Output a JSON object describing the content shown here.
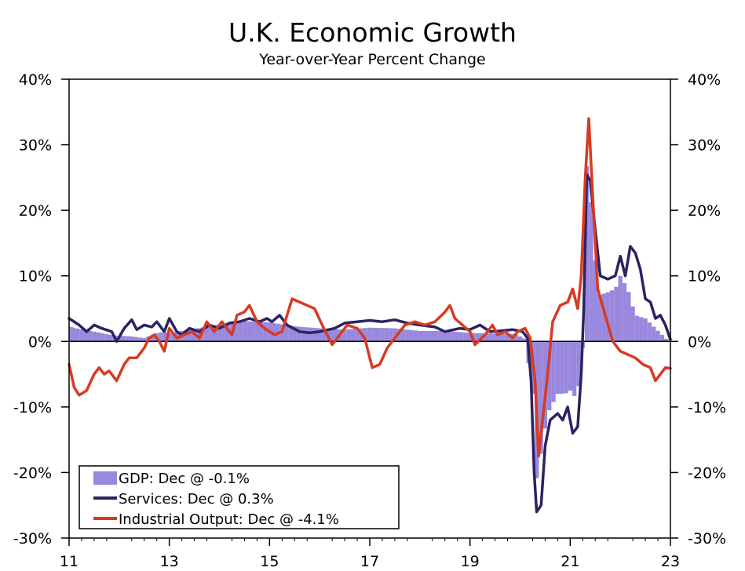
{
  "chart_data": {
    "type": "bar+line",
    "title": "U.K. Economic Growth",
    "subtitle": "Year-over-Year Percent Change",
    "x_axis": {
      "ticks": [
        "11",
        "13",
        "15",
        "17",
        "19",
        "21",
        "23"
      ],
      "tick_years": [
        2011,
        2013,
        2015,
        2017,
        2019,
        2021,
        2023
      ]
    },
    "y_axis": {
      "ticks": [
        "40%",
        "30%",
        "20%",
        "10%",
        "0%",
        "-10%",
        "-20%",
        "-30%"
      ],
      "tick_values": [
        40,
        30,
        20,
        10,
        0,
        -10,
        -20,
        -30
      ],
      "ylim": [
        -30,
        40
      ],
      "mirrored_right": true
    },
    "legend": {
      "placement": "bottom-left",
      "entries": [
        {
          "label": "GDP: Dec @ -0.1%",
          "type": "bar",
          "color": "#9988dd"
        },
        {
          "label": "Services: Dec @ 0.3%",
          "type": "line",
          "color": "#2b2263"
        },
        {
          "label": "Industrial Output: Dec @ -4.1%",
          "type": "line",
          "color": "#d83a22"
        }
      ]
    },
    "series": [
      {
        "name": "GDP",
        "type": "bar",
        "color": "#9988dd",
        "points": [
          [
            2011.0,
            2.2
          ],
          [
            2011.5,
            1.5
          ],
          [
            2011.9,
            0.9
          ],
          [
            2012.2,
            0.8
          ],
          [
            2012.5,
            0.5
          ],
          [
            2012.8,
            1.4
          ],
          [
            2013.0,
            1.3
          ],
          [
            2013.5,
            1.9
          ],
          [
            2014.0,
            2.6
          ],
          [
            2014.5,
            3.1
          ],
          [
            2015.0,
            2.9
          ],
          [
            2015.5,
            2.3
          ],
          [
            2016.0,
            2.0
          ],
          [
            2016.5,
            1.8
          ],
          [
            2017.0,
            2.1
          ],
          [
            2017.5,
            2.0
          ],
          [
            2018.0,
            1.6
          ],
          [
            2018.5,
            1.6
          ],
          [
            2019.0,
            1.3
          ],
          [
            2019.5,
            1.2
          ],
          [
            2019.9,
            1.1
          ],
          [
            2020.1,
            0.4
          ],
          [
            2020.25,
            -8.0
          ],
          [
            2020.33,
            -21.0
          ],
          [
            2020.42,
            -17.0
          ],
          [
            2020.55,
            -11.0
          ],
          [
            2020.75,
            -8.0
          ],
          [
            2020.9,
            -8.0
          ],
          [
            2021.0,
            -7.5
          ],
          [
            2021.1,
            -8.5
          ],
          [
            2021.2,
            -6.0
          ],
          [
            2021.25,
            -1.0
          ],
          [
            2021.33,
            27.0
          ],
          [
            2021.42,
            21.0
          ],
          [
            2021.55,
            7.0
          ],
          [
            2021.75,
            7.5
          ],
          [
            2021.9,
            8.0
          ],
          [
            2022.0,
            10.0
          ],
          [
            2022.15,
            8.0
          ],
          [
            2022.3,
            4.0
          ],
          [
            2022.5,
            3.5
          ],
          [
            2022.7,
            2.0
          ],
          [
            2022.9,
            0.5
          ],
          [
            2023.0,
            -0.1
          ]
        ]
      },
      {
        "name": "Services",
        "type": "line",
        "color": "#2b2263",
        "points": [
          [
            2011.0,
            3.5
          ],
          [
            2011.2,
            2.5
          ],
          [
            2011.35,
            1.5
          ],
          [
            2011.5,
            2.5
          ],
          [
            2011.65,
            2.0
          ],
          [
            2011.85,
            1.5
          ],
          [
            2011.95,
            0.0
          ],
          [
            2012.1,
            2.0
          ],
          [
            2012.25,
            3.3
          ],
          [
            2012.35,
            1.8
          ],
          [
            2012.5,
            2.5
          ],
          [
            2012.65,
            2.2
          ],
          [
            2012.75,
            3.0
          ],
          [
            2012.9,
            1.5
          ],
          [
            2013.0,
            3.5
          ],
          [
            2013.15,
            1.5
          ],
          [
            2013.25,
            1.0
          ],
          [
            2013.4,
            2.0
          ],
          [
            2013.6,
            1.5
          ],
          [
            2013.8,
            2.5
          ],
          [
            2014.0,
            2.0
          ],
          [
            2014.2,
            2.8
          ],
          [
            2014.4,
            3.0
          ],
          [
            2014.6,
            3.5
          ],
          [
            2014.8,
            3.0
          ],
          [
            2014.95,
            3.5
          ],
          [
            2015.05,
            3.0
          ],
          [
            2015.2,
            4.0
          ],
          [
            2015.35,
            2.5
          ],
          [
            2015.6,
            1.5
          ],
          [
            2015.8,
            1.3
          ],
          [
            2016.0,
            1.5
          ],
          [
            2016.3,
            2.0
          ],
          [
            2016.5,
            2.8
          ],
          [
            2016.75,
            3.0
          ],
          [
            2017.0,
            3.2
          ],
          [
            2017.25,
            3.0
          ],
          [
            2017.5,
            3.3
          ],
          [
            2017.75,
            2.8
          ],
          [
            2018.0,
            2.5
          ],
          [
            2018.3,
            2.2
          ],
          [
            2018.5,
            1.5
          ],
          [
            2018.8,
            2.0
          ],
          [
            2019.0,
            1.8
          ],
          [
            2019.2,
            2.5
          ],
          [
            2019.4,
            1.5
          ],
          [
            2019.6,
            1.6
          ],
          [
            2019.85,
            1.8
          ],
          [
            2020.05,
            1.5
          ],
          [
            2020.15,
            0.5
          ],
          [
            2020.22,
            -6.0
          ],
          [
            2020.28,
            -20.0
          ],
          [
            2020.33,
            -26.0
          ],
          [
            2020.42,
            -25.0
          ],
          [
            2020.5,
            -16.0
          ],
          [
            2020.6,
            -12.0
          ],
          [
            2020.75,
            -11.0
          ],
          [
            2020.85,
            -12.0
          ],
          [
            2020.95,
            -10.0
          ],
          [
            2021.05,
            -14.0
          ],
          [
            2021.15,
            -13.0
          ],
          [
            2021.22,
            -5.0
          ],
          [
            2021.27,
            5.0
          ],
          [
            2021.33,
            25.5
          ],
          [
            2021.4,
            24.5
          ],
          [
            2021.5,
            17.0
          ],
          [
            2021.6,
            10.0
          ],
          [
            2021.75,
            9.5
          ],
          [
            2021.9,
            10.0
          ],
          [
            2022.0,
            13.0
          ],
          [
            2022.1,
            10.0
          ],
          [
            2022.2,
            14.5
          ],
          [
            2022.3,
            13.5
          ],
          [
            2022.4,
            11.0
          ],
          [
            2022.5,
            6.5
          ],
          [
            2022.6,
            6.0
          ],
          [
            2022.7,
            3.5
          ],
          [
            2022.8,
            4.0
          ],
          [
            2022.9,
            2.5
          ],
          [
            2023.0,
            0.3
          ]
        ]
      },
      {
        "name": "Industrial Output",
        "type": "line",
        "color": "#d83a22",
        "points": [
          [
            2011.0,
            -3.5
          ],
          [
            2011.1,
            -7.0
          ],
          [
            2011.2,
            -8.2
          ],
          [
            2011.35,
            -7.5
          ],
          [
            2011.5,
            -5.0
          ],
          [
            2011.6,
            -4.0
          ],
          [
            2011.7,
            -5.0
          ],
          [
            2011.8,
            -4.5
          ],
          [
            2011.95,
            -6.0
          ],
          [
            2012.1,
            -3.5
          ],
          [
            2012.2,
            -2.5
          ],
          [
            2012.35,
            -2.5
          ],
          [
            2012.5,
            -1.0
          ],
          [
            2012.6,
            0.5
          ],
          [
            2012.7,
            1.0
          ],
          [
            2012.8,
            0.0
          ],
          [
            2012.9,
            -1.5
          ],
          [
            2013.0,
            2.0
          ],
          [
            2013.15,
            0.5
          ],
          [
            2013.3,
            1.0
          ],
          [
            2013.45,
            1.5
          ],
          [
            2013.6,
            0.5
          ],
          [
            2013.75,
            3.0
          ],
          [
            2013.9,
            1.5
          ],
          [
            2014.05,
            3.0
          ],
          [
            2014.15,
            2.0
          ],
          [
            2014.25,
            1.0
          ],
          [
            2014.35,
            4.0
          ],
          [
            2014.5,
            4.5
          ],
          [
            2014.6,
            5.5
          ],
          [
            2014.75,
            3.0
          ],
          [
            2014.9,
            2.0
          ],
          [
            2015.1,
            1.0
          ],
          [
            2015.25,
            1.5
          ],
          [
            2015.45,
            6.5
          ],
          [
            2015.6,
            6.0
          ],
          [
            2015.75,
            5.5
          ],
          [
            2015.9,
            5.0
          ],
          [
            2016.05,
            2.5
          ],
          [
            2016.25,
            -0.5
          ],
          [
            2016.4,
            1.0
          ],
          [
            2016.55,
            2.5
          ],
          [
            2016.75,
            2.0
          ],
          [
            2016.9,
            0.5
          ],
          [
            2017.05,
            -4.0
          ],
          [
            2017.2,
            -3.5
          ],
          [
            2017.35,
            -1.0
          ],
          [
            2017.5,
            0.5
          ],
          [
            2017.7,
            2.5
          ],
          [
            2017.9,
            3.0
          ],
          [
            2018.1,
            2.5
          ],
          [
            2018.3,
            3.0
          ],
          [
            2018.5,
            4.5
          ],
          [
            2018.6,
            5.5
          ],
          [
            2018.7,
            3.5
          ],
          [
            2018.85,
            2.5
          ],
          [
            2019.0,
            1.5
          ],
          [
            2019.1,
            -0.5
          ],
          [
            2019.3,
            1.0
          ],
          [
            2019.45,
            2.5
          ],
          [
            2019.55,
            1.0
          ],
          [
            2019.7,
            1.5
          ],
          [
            2019.85,
            0.5
          ],
          [
            2019.95,
            1.5
          ],
          [
            2020.1,
            2.0
          ],
          [
            2020.2,
            0.5
          ],
          [
            2020.3,
            -6.0
          ],
          [
            2020.37,
            -17.5
          ],
          [
            2020.45,
            -12.0
          ],
          [
            2020.55,
            -5.0
          ],
          [
            2020.65,
            3.0
          ],
          [
            2020.8,
            5.5
          ],
          [
            2020.95,
            6.0
          ],
          [
            2021.05,
            8.0
          ],
          [
            2021.15,
            5.0
          ],
          [
            2021.22,
            10.0
          ],
          [
            2021.3,
            25.0
          ],
          [
            2021.37,
            34.0
          ],
          [
            2021.45,
            22.0
          ],
          [
            2021.55,
            8.0
          ],
          [
            2021.7,
            4.0
          ],
          [
            2021.85,
            0.0
          ],
          [
            2022.0,
            -1.5
          ],
          [
            2022.15,
            -2.0
          ],
          [
            2022.3,
            -2.5
          ],
          [
            2022.45,
            -3.5
          ],
          [
            2022.6,
            -4.0
          ],
          [
            2022.7,
            -6.0
          ],
          [
            2022.8,
            -5.0
          ],
          [
            2022.9,
            -4.0
          ],
          [
            2023.0,
            -4.1
          ]
        ]
      }
    ]
  }
}
